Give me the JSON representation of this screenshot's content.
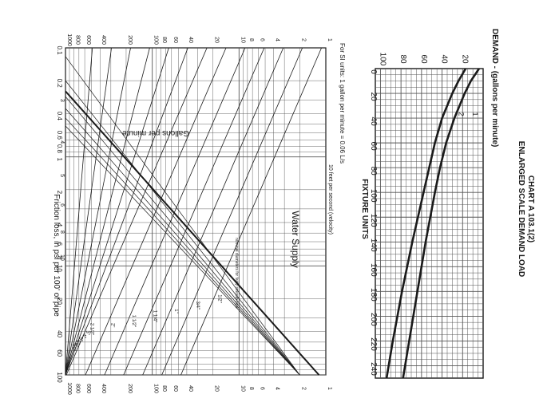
{
  "colors": {
    "ink": "#1a1a1a",
    "grid": "#555555",
    "paper": "#ffffff"
  },
  "chart_data": [
    {
      "type": "line",
      "title": "CHART A 103.1(2)",
      "subtitle": "ENLARGED SCALE DEMAND LOAD",
      "xlabel": "FIXTURE UNITS",
      "ylabel": "DEMAND - (gallons per minute)",
      "xlim": [
        0,
        250
      ],
      "ylim": [
        0,
        105
      ],
      "x_ticks": [
        "0",
        "20",
        "40",
        "60",
        "80",
        "100",
        "120",
        "140",
        "160",
        "180",
        "200",
        "220",
        "240"
      ],
      "y_ticks": [
        "20",
        "40",
        "60",
        "80",
        "100"
      ],
      "grid": true,
      "series": [
        {
          "label": "1",
          "x": [
            0,
            10,
            20,
            40,
            60,
            80,
            100,
            140,
            180,
            220,
            250
          ],
          "values": [
            4,
            12,
            18,
            28,
            36,
            42,
            47,
            56,
            64,
            72,
            78
          ]
        },
        {
          "label": "2",
          "x": [
            0,
            10,
            20,
            40,
            60,
            100,
            140,
            180,
            220,
            250
          ],
          "values": [
            17,
            24,
            30,
            40,
            47,
            58,
            69,
            79,
            88,
            94
          ]
        }
      ]
    },
    {
      "type": "line",
      "title": "Water Supply",
      "note": "For SI units: 1 gallon per minute = 0.06 L/s",
      "xlabel": "Friction loss, in psi per 100' of pipe",
      "ylabel": "Gallons per minute",
      "x_scale": "log",
      "y_scale": "log",
      "xlim": [
        0.1,
        100
      ],
      "ylim": [
        1,
        1000
      ],
      "x_ticks": [
        "0.1",
        "0.2",
        "0.4",
        "0.6",
        "0.8",
        "1",
        "2",
        "4",
        "6",
        "8",
        "10",
        "20",
        "40",
        "60",
        "100"
      ],
      "y_ticks": [
        "1",
        "2",
        "4",
        "6",
        "8",
        "10",
        "20",
        "40",
        "60",
        "80",
        "100",
        "200",
        "400",
        "600",
        "800",
        "1000"
      ],
      "grid": true,
      "velocity_lines": {
        "title": "10 feet per second (velocity)",
        "labels": [
          "3",
          "4",
          "5",
          "6",
          "8",
          "10"
        ]
      },
      "pipe_lines": {
        "title": "nominal diameters for fairly smooth pipe",
        "labels": [
          "1/2\"",
          "3/4\"",
          "1\"",
          "1 1/4\"",
          "1 1/2\"",
          "2\"",
          "2 1/2\"",
          "3\"",
          "4\"",
          "5\"",
          "6\"",
          "8\"",
          "10\""
        ]
      }
    }
  ]
}
